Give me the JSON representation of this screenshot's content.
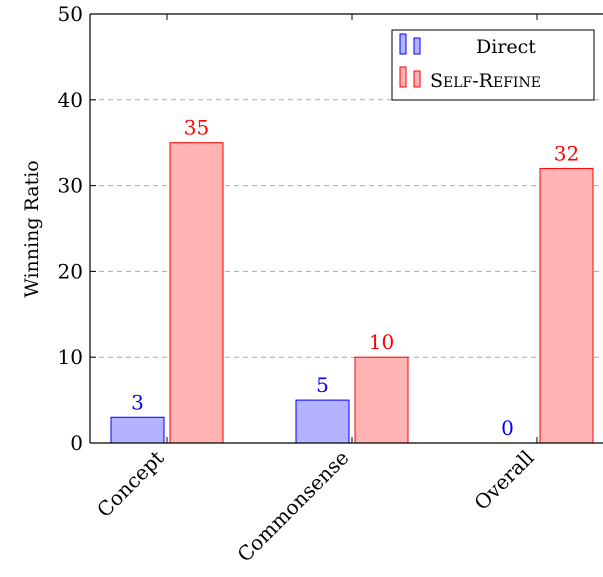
{
  "chart_data": {
    "type": "bar",
    "categories": [
      "Concept",
      "Commonsense",
      "Overall"
    ],
    "series": [
      {
        "name": "Direct",
        "values": [
          3,
          5,
          0
        ],
        "fill": "#b3b3ff",
        "stroke": "#0000ff",
        "label_color": "#0000ff"
      },
      {
        "name": "SELF-REFINE",
        "name_prefix": "S",
        "name_small_1": "ELF",
        "name_dash": "-R",
        "name_small_2": "EFINE",
        "values": [
          35,
          10,
          32
        ],
        "fill": "#ffb3b3",
        "stroke": "#ff0000",
        "label_color": "#ff0000"
      }
    ],
    "xlabel": "",
    "ylabel": "Winning Ratio",
    "ylim": [
      0,
      50
    ],
    "yticks": [
      0,
      10,
      20,
      30,
      40,
      50
    ],
    "grid": "horizontal-dashed",
    "legend": "top-right",
    "x_tick_rotation": "45-degrees"
  }
}
